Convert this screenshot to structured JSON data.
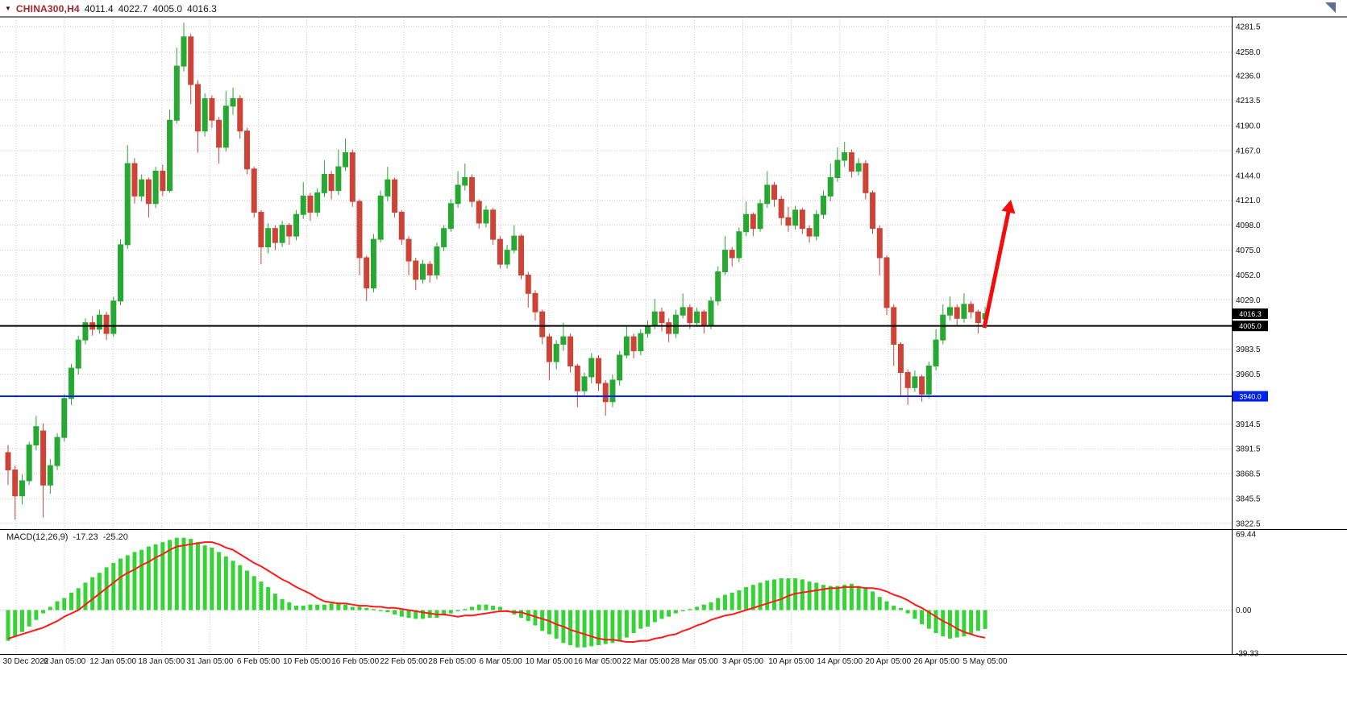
{
  "header": {
    "symbol": "CHINA300,H4",
    "open": "4011.4",
    "high": "4022.7",
    "low": "4005.0",
    "close": "4016.3"
  },
  "macd_header": {
    "label": "MACD(12,26,9)",
    "value1": "-17.23",
    "value2": "-25.20"
  },
  "chart_data": {
    "type": "candlestick",
    "title": "CHINA300 H4 with MACD(12,26,9)",
    "colors": {
      "up": "#26a832",
      "down": "#cc4437",
      "macd_bar": "#35d435",
      "macd_signal": "#ff1a1a",
      "arrow": "#f40b0b",
      "grid": "#c9c9c9",
      "support_black": "#000000",
      "support_blue": "#0022ee"
    },
    "price_axis": {
      "range": [
        3822.5,
        4281.5
      ],
      "labels": [
        {
          "text": "4281.5",
          "value": 4281.5
        },
        {
          "text": "4258.0",
          "value": 4258.0
        },
        {
          "text": "4236.0",
          "value": 4236.0
        },
        {
          "text": "4213.5",
          "value": 4213.5
        },
        {
          "text": "4190.0",
          "value": 4190.0
        },
        {
          "text": "4167.0",
          "value": 4167.0
        },
        {
          "text": "4144.0",
          "value": 4144.0
        },
        {
          "text": "4121.0",
          "value": 4121.0
        },
        {
          "text": "4098.0",
          "value": 4098.0
        },
        {
          "text": "4075.0",
          "value": 4075.0
        },
        {
          "text": "4052.0",
          "value": 4052.0
        },
        {
          "text": "4029.0",
          "value": 4029.0
        },
        {
          "text": "3983.5",
          "value": 3983.5
        },
        {
          "text": "3960.5",
          "value": 3960.5
        },
        {
          "text": "3914.5",
          "value": 3914.5
        },
        {
          "text": "3891.5",
          "value": 3891.5
        },
        {
          "text": "3868.5",
          "value": 3868.5
        },
        {
          "text": "3845.5",
          "value": 3845.5
        },
        {
          "text": "3822.5",
          "value": 3822.5
        }
      ],
      "badges": [
        {
          "text": "4016.3",
          "value": 4016.3,
          "bg": "#000000",
          "fg": "#ffffff"
        },
        {
          "text": "4005.0",
          "value": 4005.0,
          "bg": "#000000",
          "fg": "#ffffff"
        },
        {
          "text": "3940.0",
          "value": 3940.0,
          "bg": "#0022ee",
          "fg": "#ffffff"
        }
      ]
    },
    "hlines": [
      {
        "name": "support-line-black",
        "value": 4005.0,
        "color": "#000000",
        "width": 2
      },
      {
        "name": "support-line-blue",
        "value": 3940.0,
        "color": "#0022ee",
        "width": 2
      }
    ],
    "time_labels": [
      "30 Dec 2022",
      "6 Jan 05:00",
      "12 Jan 05:00",
      "18 Jan 05:00",
      "31 Jan 05:00",
      "6 Feb 05:00",
      "10 Feb 05:00",
      "16 Feb 05:00",
      "22 Feb 05:00",
      "28 Feb 05:00",
      "6 Mar 05:00",
      "10 Mar 05:00",
      "16 Mar 05:00",
      "22 Mar 05:00",
      "28 Mar 05:00",
      "3 Apr 05:00",
      "10 Apr 05:00",
      "14 Apr 05:00",
      "20 Apr 05:00",
      "26 Apr 05:00",
      "5 May 05:00"
    ],
    "candles": [
      [
        3888,
        3895,
        3858,
        3872
      ],
      [
        3872,
        3876,
        3826,
        3848
      ],
      [
        3848,
        3868,
        3840,
        3862
      ],
      [
        3862,
        3898,
        3858,
        3895
      ],
      [
        3895,
        3922,
        3890,
        3912
      ],
      [
        3908,
        3915,
        3828,
        3858
      ],
      [
        3858,
        3882,
        3850,
        3876
      ],
      [
        3876,
        3906,
        3872,
        3902
      ],
      [
        3902,
        3942,
        3898,
        3938
      ],
      [
        3938,
        3970,
        3932,
        3966
      ],
      [
        3966,
        3996,
        3960,
        3992
      ],
      [
        3992,
        4012,
        3988,
        4008
      ],
      [
        4008,
        4014,
        3996,
        4002
      ],
      [
        4002,
        4020,
        3998,
        4015
      ],
      [
        4015,
        4018,
        3992,
        3998
      ],
      [
        3998,
        4032,
        3995,
        4028
      ],
      [
        4028,
        4085,
        4024,
        4080
      ],
      [
        4080,
        4172,
        4076,
        4155
      ],
      [
        4155,
        4160,
        4118,
        4125
      ],
      [
        4125,
        4145,
        4120,
        4140
      ],
      [
        4140,
        4142,
        4105,
        4118
      ],
      [
        4118,
        4152,
        4114,
        4148
      ],
      [
        4148,
        4154,
        4125,
        4130
      ],
      [
        4130,
        4205,
        4128,
        4195
      ],
      [
        4195,
        4262,
        4192,
        4245
      ],
      [
        4245,
        4285,
        4240,
        4272
      ],
      [
        4272,
        4275,
        4210,
        4228
      ],
      [
        4228,
        4232,
        4165,
        4185
      ],
      [
        4185,
        4220,
        4180,
        4215
      ],
      [
        4215,
        4218,
        4188,
        4195
      ],
      [
        4195,
        4198,
        4155,
        4170
      ],
      [
        4170,
        4222,
        4166,
        4208
      ],
      [
        4208,
        4225,
        4200,
        4215
      ],
      [
        4215,
        4218,
        4178,
        4185
      ],
      [
        4185,
        4188,
        4145,
        4150
      ],
      [
        4150,
        4152,
        4105,
        4110
      ],
      [
        4110,
        4112,
        4062,
        4078
      ],
      [
        4078,
        4100,
        4072,
        4095
      ],
      [
        4095,
        4098,
        4075,
        4082
      ],
      [
        4082,
        4102,
        4078,
        4098
      ],
      [
        4098,
        4100,
        4080,
        4088
      ],
      [
        4088,
        4112,
        4084,
        4108
      ],
      [
        4108,
        4138,
        4104,
        4125
      ],
      [
        4125,
        4128,
        4102,
        4110
      ],
      [
        4110,
        4132,
        4106,
        4128
      ],
      [
        4128,
        4158,
        4124,
        4145
      ],
      [
        4145,
        4148,
        4122,
        4130
      ],
      [
        4130,
        4168,
        4126,
        4152
      ],
      [
        4152,
        4178,
        4148,
        4165
      ],
      [
        4165,
        4168,
        4115,
        4120
      ],
      [
        4120,
        4122,
        4052,
        4068
      ],
      [
        4068,
        4070,
        4028,
        4040
      ],
      [
        4040,
        4090,
        4036,
        4085
      ],
      [
        4085,
        4130,
        4082,
        4125
      ],
      [
        4125,
        4152,
        4120,
        4140
      ],
      [
        4140,
        4142,
        4105,
        4110
      ],
      [
        4110,
        4112,
        4080,
        4085
      ],
      [
        4085,
        4088,
        4052,
        4065
      ],
      [
        4065,
        4068,
        4038,
        4048
      ],
      [
        4048,
        4066,
        4044,
        4062
      ],
      [
        4062,
        4065,
        4045,
        4052
      ],
      [
        4052,
        4082,
        4048,
        4078
      ],
      [
        4078,
        4098,
        4074,
        4095
      ],
      [
        4095,
        4122,
        4092,
        4118
      ],
      [
        4118,
        4148,
        4114,
        4135
      ],
      [
        4135,
        4155,
        4130,
        4142
      ],
      [
        4142,
        4145,
        4115,
        4120
      ],
      [
        4120,
        4122,
        4095,
        4100
      ],
      [
        4100,
        4116,
        4096,
        4112
      ],
      [
        4112,
        4114,
        4080,
        4085
      ],
      [
        4085,
        4088,
        4058,
        4062
      ],
      [
        4062,
        4080,
        4058,
        4075
      ],
      [
        4075,
        4098,
        4072,
        4088
      ],
      [
        4088,
        4090,
        4048,
        4052
      ],
      [
        4052,
        4055,
        4022,
        4035
      ],
      [
        4035,
        4038,
        4010,
        4018
      ],
      [
        4018,
        4020,
        3988,
        3995
      ],
      [
        3995,
        3998,
        3955,
        3972
      ],
      [
        3972,
        3992,
        3965,
        3988
      ],
      [
        3988,
        4008,
        3982,
        3995
      ],
      [
        3995,
        3998,
        3962,
        3968
      ],
      [
        3968,
        3970,
        3930,
        3945
      ],
      [
        3945,
        3962,
        3940,
        3958
      ],
      [
        3958,
        3980,
        3952,
        3975
      ],
      [
        3975,
        3978,
        3945,
        3952
      ],
      [
        3952,
        3955,
        3922,
        3935
      ],
      [
        3935,
        3960,
        3930,
        3955
      ],
      [
        3955,
        3982,
        3950,
        3978
      ],
      [
        3978,
        4005,
        3975,
        3995
      ],
      [
        3995,
        3998,
        3975,
        3982
      ],
      [
        3982,
        4002,
        3978,
        3998
      ],
      [
        3998,
        4010,
        3994,
        4005
      ],
      [
        4005,
        4030,
        4002,
        4018
      ],
      [
        4018,
        4022,
        4000,
        4008
      ],
      [
        4008,
        4012,
        3990,
        3998
      ],
      [
        3998,
        4020,
        3994,
        4015
      ],
      [
        4015,
        4035,
        4012,
        4022
      ],
      [
        4022,
        4025,
        4002,
        4008
      ],
      [
        4008,
        4022,
        4004,
        4018
      ],
      [
        4018,
        4020,
        3998,
        4005
      ],
      [
        4005,
        4032,
        4002,
        4028
      ],
      [
        4028,
        4060,
        4024,
        4055
      ],
      [
        4055,
        4088,
        4052,
        4075
      ],
      [
        4075,
        4078,
        4060,
        4068
      ],
      [
        4068,
        4096,
        4064,
        4092
      ],
      [
        4092,
        4120,
        4088,
        4108
      ],
      [
        4108,
        4110,
        4088,
        4095
      ],
      [
        4095,
        4122,
        4092,
        4118
      ],
      [
        4118,
        4148,
        4114,
        4135
      ],
      [
        4135,
        4138,
        4115,
        4122
      ],
      [
        4122,
        4125,
        4098,
        4105
      ],
      [
        4105,
        4115,
        4092,
        4098
      ],
      [
        4098,
        4116,
        4094,
        4112
      ],
      [
        4112,
        4114,
        4090,
        4095
      ],
      [
        4095,
        4098,
        4082,
        4088
      ],
      [
        4088,
        4112,
        4084,
        4108
      ],
      [
        4108,
        4130,
        4104,
        4125
      ],
      [
        4125,
        4155,
        4120,
        4142
      ],
      [
        4142,
        4170,
        4138,
        4158
      ],
      [
        4158,
        4175,
        4152,
        4165
      ],
      [
        4165,
        4168,
        4142,
        4148
      ],
      [
        4148,
        4160,
        4144,
        4155
      ],
      [
        4155,
        4158,
        4122,
        4128
      ],
      [
        4128,
        4130,
        4090,
        4095
      ],
      [
        4095,
        4098,
        4052,
        4068
      ],
      [
        4068,
        4070,
        4015,
        4022
      ],
      [
        4022,
        4025,
        3968,
        3988
      ],
      [
        3988,
        3990,
        3940,
        3962
      ],
      [
        3962,
        3965,
        3932,
        3948
      ],
      [
        3948,
        3964,
        3944,
        3958
      ],
      [
        3958,
        3960,
        3935,
        3942
      ],
      [
        3942,
        3972,
        3938,
        3968
      ],
      [
        3968,
        4002,
        3964,
        3992
      ],
      [
        3992,
        4025,
        3988,
        4015
      ],
      [
        4015,
        4032,
        4010,
        4022
      ],
      [
        4022,
        4025,
        4005,
        4012
      ],
      [
        4012,
        4035,
        4008,
        4025
      ],
      [
        4025,
        4028,
        4012,
        4018
      ],
      [
        4018,
        4020,
        3998,
        4008
      ],
      [
        4011.4,
        4022.7,
        4005.0,
        4016.3
      ]
    ],
    "macd": {
      "label": "MACD(12,26,9)",
      "current_values": [
        -17.23,
        -25.2
      ],
      "range": [
        -39.33,
        69.44
      ],
      "axis_labels": [
        {
          "text": "69.44",
          "value": 69.44
        },
        {
          "text": "0.00",
          "value": 0
        },
        {
          "text": "-39.33",
          "value": -39.33
        }
      ],
      "values": [
        -28,
        -24,
        -20,
        -15,
        -9,
        -3,
        3,
        8,
        11,
        16,
        20,
        25,
        30,
        34,
        39,
        43,
        47,
        50,
        53,
        55,
        58,
        60,
        62,
        64,
        66,
        66,
        65,
        62,
        59,
        57,
        53,
        49,
        45,
        41,
        36,
        31,
        26,
        21,
        15,
        10,
        7,
        4,
        4,
        5,
        5,
        5,
        6,
        6,
        5,
        3,
        3,
        2,
        1,
        -1,
        -2,
        -4,
        -6,
        -7,
        -8,
        -8,
        -7,
        -7,
        -5,
        -3,
        -1,
        1,
        3,
        5,
        5,
        4,
        3,
        0,
        -4,
        -7,
        -10,
        -14,
        -19,
        -22,
        -26,
        -30,
        -32,
        -34,
        -34,
        -33,
        -32,
        -31,
        -30,
        -28,
        -25,
        -21,
        -17,
        -15,
        -11,
        -8,
        -6,
        -3,
        -1,
        1,
        3,
        5,
        7,
        11,
        14,
        16,
        18,
        21,
        23,
        25,
        27,
        28,
        29,
        29,
        29,
        28,
        26,
        25,
        23,
        22,
        22,
        23,
        24,
        22,
        21,
        17,
        12,
        8,
        4,
        2,
        -3,
        -8,
        -13,
        -17,
        -21,
        -24,
        -26,
        -25,
        -24,
        -22,
        -19,
        -17.2
      ],
      "signal": [
        -26,
        -24,
        -22,
        -20,
        -18,
        -16,
        -13,
        -10,
        -6,
        -3,
        0,
        5,
        10,
        15,
        20,
        25,
        30,
        34,
        37,
        41,
        44,
        48,
        51,
        55,
        58,
        59,
        60,
        61,
        62,
        62,
        60,
        57,
        55,
        51,
        47,
        43,
        40,
        36,
        32,
        28,
        25,
        21,
        18,
        15,
        11,
        8,
        7,
        6,
        6,
        5,
        4,
        4,
        3,
        3,
        2,
        2,
        1,
        0,
        -1,
        -2,
        -3,
        -4,
        -4,
        -5,
        -6,
        -5,
        -5,
        -4,
        -3,
        -2,
        -1,
        -1,
        -2,
        -2,
        -4,
        -6,
        -8,
        -10,
        -13,
        -15,
        -18,
        -20,
        -22,
        -24,
        -26,
        -27,
        -27,
        -28,
        -29,
        -29,
        -28,
        -28,
        -26,
        -25,
        -23,
        -22,
        -19,
        -17,
        -14,
        -12,
        -9,
        -7,
        -5,
        -4,
        -2,
        0,
        2,
        4,
        6,
        8,
        10,
        13,
        15,
        16,
        17,
        18,
        19,
        20,
        20,
        21,
        21,
        21,
        20,
        20,
        19,
        17,
        14,
        12,
        9,
        5,
        2,
        -2,
        -6,
        -10,
        -13,
        -17,
        -20,
        -22,
        -24,
        -25.2
      ]
    },
    "arrow": {
      "from": [
        1221,
        407
      ],
      "to": [
        1251,
        263
      ]
    }
  }
}
